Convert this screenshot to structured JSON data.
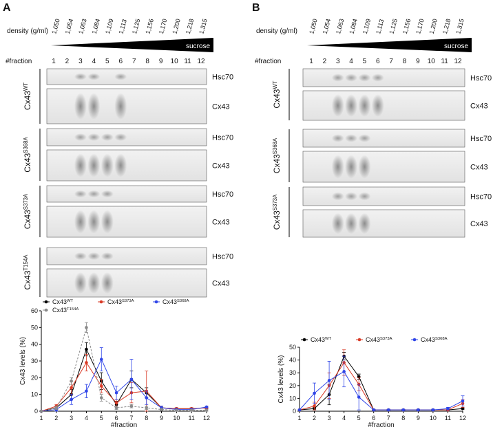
{
  "panels": [
    {
      "letter": "A",
      "density_label": "density (g/ml)",
      "densities": [
        "1,050",
        "1,054",
        "1,063",
        "1,084",
        "1,109",
        "1,113",
        "1,125",
        "1,156",
        "1,170",
        "1,200",
        "1,218",
        "1,315"
      ],
      "gradient_label": "sucrose",
      "fraction_label": "#fraction",
      "fractions": [
        "1",
        "2",
        "3",
        "4",
        "5",
        "6",
        "7",
        "8",
        "9",
        "10",
        "11",
        "12"
      ],
      "blots": [
        {
          "construct": "Cx43",
          "superscript": "WT",
          "bands": [
            "Hsc70",
            "Cx43"
          ]
        },
        {
          "construct": "Cx43",
          "superscript": "S368A",
          "bands": [
            "Hsc70",
            "Cx43"
          ]
        },
        {
          "construct": "Cx43",
          "superscript": "S373A",
          "bands": [
            "Hsc70",
            "Cx43"
          ]
        },
        {
          "construct": "Cx43",
          "superscript": "T154A",
          "bands": [
            "Hsc70",
            "Cx43"
          ]
        }
      ]
    },
    {
      "letter": "B",
      "density_label": "density (g/ml)",
      "densities": [
        "1,050",
        "1,054",
        "1,063",
        "1,084",
        "1,109",
        "1,113",
        "1,125",
        "1,156",
        "1,170",
        "1,200",
        "1,218",
        "1,315"
      ],
      "gradient_label": "sucrose",
      "fraction_label": "#fraction",
      "fractions": [
        "1",
        "2",
        "3",
        "4",
        "5",
        "6",
        "7",
        "8",
        "9",
        "10",
        "11",
        "12"
      ],
      "blots": [
        {
          "construct": "Cx43",
          "superscript": "WT",
          "bands": [
            "Hsc70",
            "Cx43"
          ]
        },
        {
          "construct": "Cx43",
          "superscript": "S368A",
          "bands": [
            "Hsc70",
            "Cx43"
          ]
        },
        {
          "construct": "Cx43",
          "superscript": "S373A",
          "bands": [
            "Hsc70",
            "Cx43"
          ]
        }
      ]
    }
  ],
  "chart_data": [
    {
      "type": "line",
      "ylabel": "Cx43 levels (%)",
      "xlabel": "#fraction",
      "x": [
        1,
        2,
        3,
        4,
        5,
        6,
        7,
        8,
        9,
        10,
        11,
        12
      ],
      "xlim": [
        1,
        12
      ],
      "xticks": [
        1,
        2,
        3,
        4,
        5,
        6,
        7,
        8,
        9,
        10,
        11,
        12
      ],
      "ylim": [
        0,
        60
      ],
      "yticks": [
        0,
        10,
        20,
        30,
        40,
        50,
        60
      ],
      "series": [
        {
          "name": "Cx43",
          "superscript": "WT",
          "color": "#000000",
          "dashed": false,
          "values": [
            0,
            2,
            10,
            37,
            18,
            4,
            19,
            11,
            2,
            1.5,
            1.5,
            2
          ],
          "errors": [
            0,
            1,
            3,
            4,
            5,
            2,
            5,
            3,
            1,
            0.5,
            0.5,
            0.5
          ]
        },
        {
          "name": "Cx43",
          "superscript": "S373A",
          "color": "#d93a26",
          "dashed": false,
          "values": [
            0,
            3,
            14,
            29,
            15,
            5,
            11,
            12,
            2,
            1.5,
            1.5,
            2
          ],
          "errors": [
            0,
            1,
            4,
            5,
            4,
            2,
            6,
            12,
            1,
            0.5,
            0.5,
            0.5
          ]
        },
        {
          "name": "Cx43",
          "superscript": "S368A",
          "color": "#2f45e8",
          "dashed": false,
          "values": [
            0,
            1,
            7,
            12,
            31,
            11,
            19,
            8,
            2,
            1,
            1,
            2.5
          ],
          "errors": [
            0,
            1,
            3,
            4,
            7,
            4,
            12,
            4,
            1,
            0.5,
            0.5,
            0.5
          ]
        },
        {
          "name": "Cx43",
          "superscript": "T154A",
          "color": "#8a8a8a",
          "dashed": true,
          "values": [
            0,
            2,
            18,
            50,
            8,
            2,
            3,
            2,
            1,
            0.5,
            0.5,
            0.5
          ],
          "errors": [
            0,
            1,
            2,
            3,
            2,
            1,
            1,
            1,
            0.5,
            0.5,
            0.5,
            0.5
          ]
        }
      ]
    },
    {
      "type": "line",
      "ylabel": "Cx43 levels (%)",
      "xlabel": "#fraction",
      "x": [
        1,
        2,
        3,
        4,
        5,
        6,
        7,
        8,
        9,
        10,
        11,
        12
      ],
      "xlim": [
        1,
        12
      ],
      "xticks": [
        1,
        2,
        3,
        4,
        5,
        6,
        7,
        8,
        9,
        10,
        11,
        12
      ],
      "ylim": [
        0,
        50
      ],
      "yticks": [
        0,
        10,
        20,
        30,
        40,
        50
      ],
      "series": [
        {
          "name": "Cx43",
          "superscript": "WT",
          "color": "#000000",
          "dashed": false,
          "values": [
            1,
            2,
            13,
            43,
            27,
            1,
            1,
            1,
            1,
            1,
            1,
            2
          ],
          "errors": [
            0,
            1,
            8,
            3,
            2,
            0.5,
            0.5,
            0.5,
            0.5,
            0.5,
            0.5,
            0.5
          ]
        },
        {
          "name": "Cx43",
          "superscript": "S373A",
          "color": "#d93a26",
          "dashed": false,
          "values": [
            1,
            4,
            20,
            38,
            21,
            1,
            1,
            1,
            1,
            1,
            1,
            6
          ],
          "errors": [
            0,
            3,
            10,
            10,
            5,
            0.5,
            0.5,
            0.5,
            0.5,
            0.5,
            0.5,
            3
          ]
        },
        {
          "name": "Cx43",
          "superscript": "S368A",
          "color": "#2f45e8",
          "dashed": false,
          "values": [
            1,
            14,
            24,
            31,
            11,
            1,
            1,
            1,
            1,
            1,
            2,
            8
          ],
          "errors": [
            0,
            8,
            15,
            12,
            10,
            0.5,
            0.5,
            0.5,
            0.5,
            0.5,
            1,
            4
          ]
        }
      ]
    }
  ]
}
